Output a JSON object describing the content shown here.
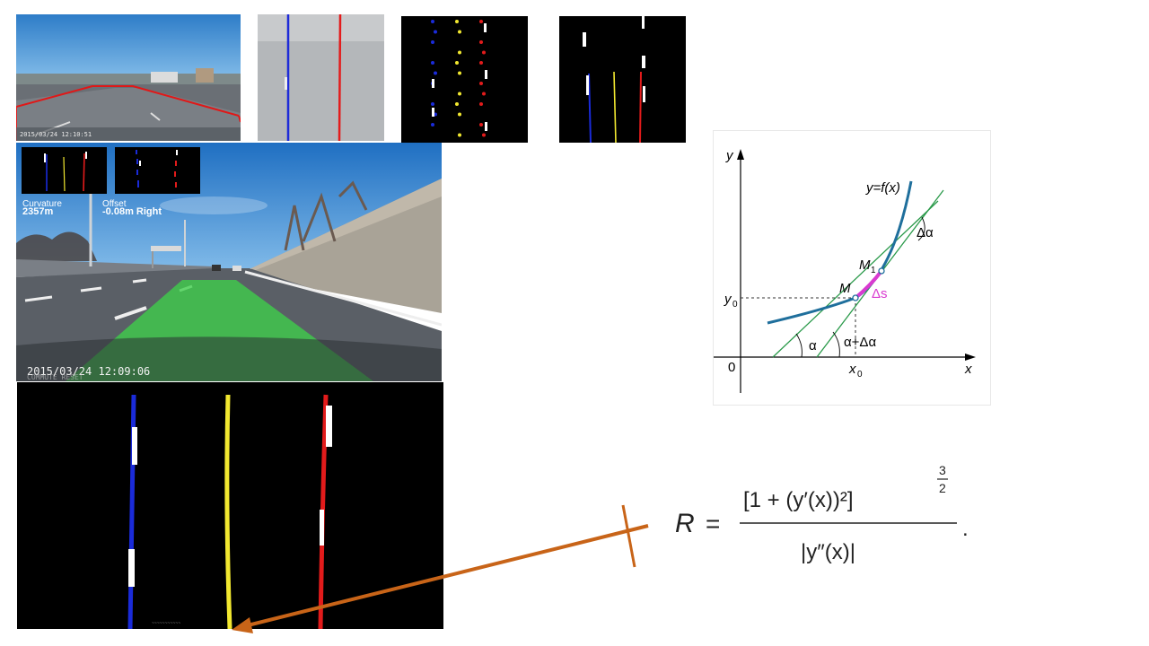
{
  "thumbnails": {
    "road_timestamp": "2015/03/24 12:10:51"
  },
  "overlay": {
    "curvature_label": "Curvature",
    "curvature_value": "2357m",
    "offset_label": "Offset",
    "offset_value": "-0.08m Right",
    "timestamp": "2015/03/24 12:09:06",
    "watermark": "COMMUTE RESET"
  },
  "curvature_diagram": {
    "y_axis": "y",
    "x_axis": "x",
    "origin": "0",
    "function_label": "y=f(x)",
    "point_m": "M",
    "point_m1": "M",
    "point_m1_sub": "1",
    "delta_s": "Δs",
    "delta_alpha": "Δα",
    "alpha": "α",
    "alpha_plus_delta": "α+Δα",
    "y0": "y",
    "y0_sub": "0",
    "x0": "x",
    "x0_sub": "0"
  },
  "formula": {
    "lhs": "R",
    "equals": "=",
    "numerator": "[1 + (y′(x))²]",
    "exponent_num": "3",
    "exponent_den": "2",
    "denominator": "|y″(x)|",
    "period": "."
  },
  "colors": {
    "sky": "#3a8fd4",
    "road": "#5b6066",
    "lane_fill": "#3ecf4a",
    "left_line": "#1a2bd9",
    "center_line": "#f2e830",
    "right_line": "#e21b1b",
    "arrow": "#c86418",
    "curve": "#1f6f9c",
    "tangent": "#2a9a4a",
    "arc": "#d93bd0"
  }
}
